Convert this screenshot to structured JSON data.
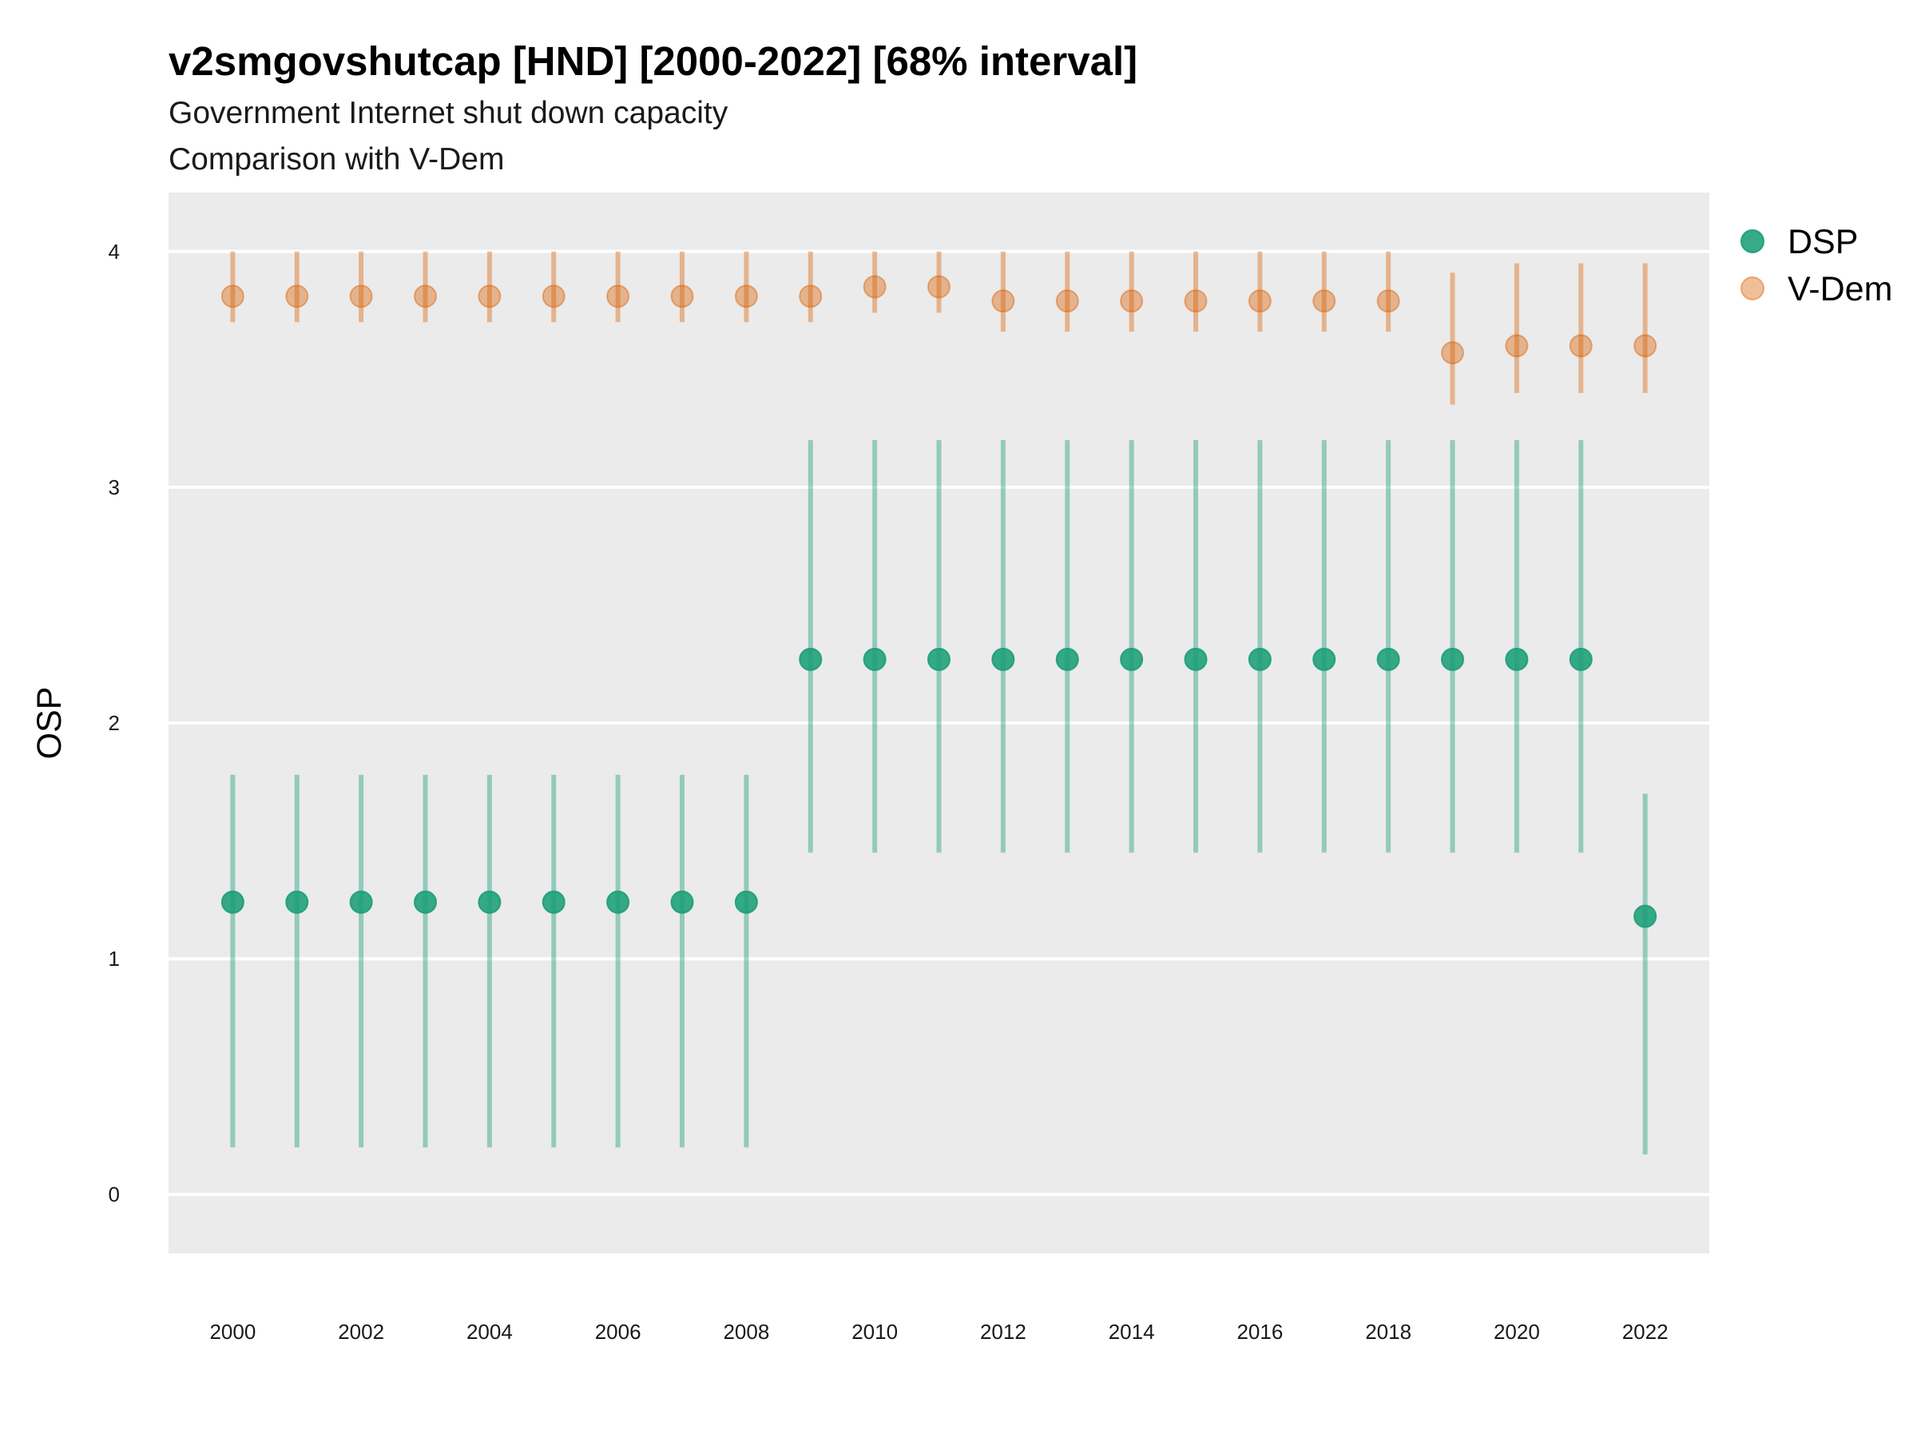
{
  "chart_data": {
    "type": "scatter",
    "title": "v2smgovshutcap [HND] [2000-2022] [68% interval]",
    "subtitle_lines": [
      "Government Internet shut down capacity",
      "Comparison with V-Dem"
    ],
    "xlabel": "",
    "ylabel": "OSP",
    "xlim": [
      1999,
      2023
    ],
    "ylim": [
      -0.25,
      4.25
    ],
    "x_ticks": [
      2000,
      2002,
      2004,
      2006,
      2008,
      2010,
      2012,
      2014,
      2016,
      2018,
      2020,
      2022
    ],
    "y_ticks": [
      0,
      1,
      2,
      3,
      4
    ],
    "grid": true,
    "legend_position": "right",
    "x": [
      2000,
      2001,
      2002,
      2003,
      2004,
      2005,
      2006,
      2007,
      2008,
      2009,
      2010,
      2011,
      2012,
      2013,
      2014,
      2015,
      2016,
      2017,
      2018,
      2019,
      2020,
      2021,
      2022
    ],
    "series": [
      {
        "name": "DSP",
        "color": "#1b9e77",
        "values": [
          1.24,
          1.24,
          1.24,
          1.24,
          1.24,
          1.24,
          1.24,
          1.24,
          1.24,
          2.27,
          2.27,
          2.27,
          2.27,
          2.27,
          2.27,
          2.27,
          2.27,
          2.27,
          2.27,
          2.27,
          2.27,
          2.27,
          1.18
        ],
        "lower": [
          0.2,
          0.2,
          0.2,
          0.2,
          0.2,
          0.2,
          0.2,
          0.2,
          0.2,
          1.45,
          1.45,
          1.45,
          1.45,
          1.45,
          1.45,
          1.45,
          1.45,
          1.45,
          1.45,
          1.45,
          1.45,
          1.45,
          0.17
        ],
        "upper": [
          1.78,
          1.78,
          1.78,
          1.78,
          1.78,
          1.78,
          1.78,
          1.78,
          1.78,
          3.2,
          3.2,
          3.2,
          3.2,
          3.2,
          3.2,
          3.2,
          3.2,
          3.2,
          3.2,
          3.2,
          3.2,
          3.2,
          1.7
        ]
      },
      {
        "name": "V-Dem",
        "color": "#d95f02",
        "values": [
          3.81,
          3.81,
          3.81,
          3.81,
          3.81,
          3.81,
          3.81,
          3.81,
          3.81,
          3.81,
          3.85,
          3.85,
          3.79,
          3.79,
          3.79,
          3.79,
          3.79,
          3.79,
          3.79,
          3.57,
          3.6,
          3.6,
          3.6
        ],
        "lower": [
          3.7,
          3.7,
          3.7,
          3.7,
          3.7,
          3.7,
          3.7,
          3.7,
          3.7,
          3.7,
          3.74,
          3.74,
          3.66,
          3.66,
          3.66,
          3.66,
          3.66,
          3.66,
          3.66,
          3.35,
          3.4,
          3.4,
          3.4
        ],
        "upper": [
          4.0,
          4.0,
          4.0,
          4.0,
          4.0,
          4.0,
          4.0,
          4.0,
          4.0,
          4.0,
          4.0,
          4.0,
          4.0,
          4.0,
          4.0,
          4.0,
          4.0,
          4.0,
          4.0,
          3.91,
          3.95,
          3.95,
          3.95
        ]
      }
    ]
  }
}
